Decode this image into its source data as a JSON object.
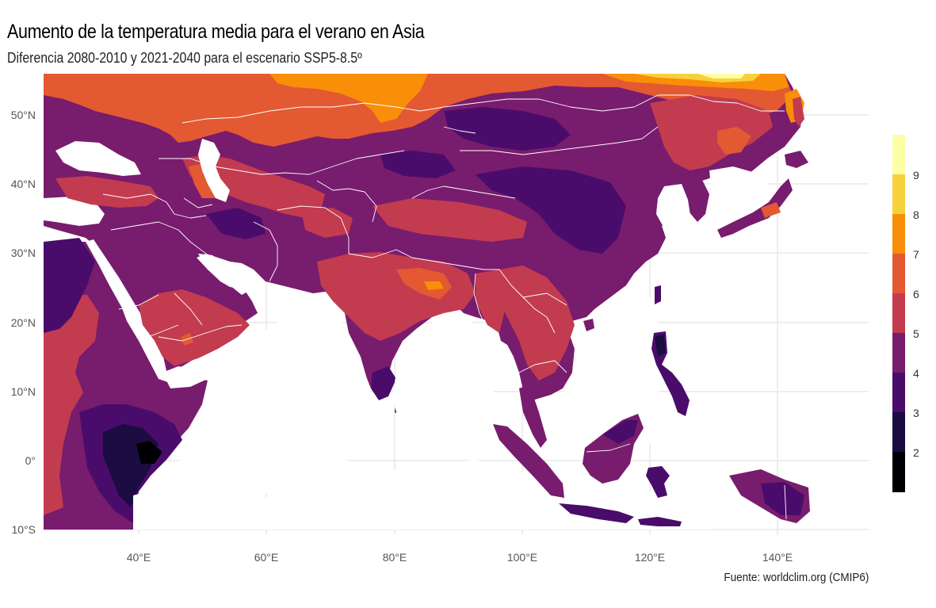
{
  "title": "Aumento de la temperatura media para el verano en Asia",
  "subtitle": "Diferencia 2080-2010 y 2021-2040 para el escenario SSP5-8.5º",
  "caption": "Fuente: worldclim.org (CMIP6)",
  "map": {
    "projection": "equirectangular",
    "lon_range": [
      25,
      155
    ],
    "lat_range": [
      -10,
      56
    ],
    "lat_ticks": [
      {
        "value": 50,
        "label": "50°N"
      },
      {
        "value": 40,
        "label": "40°N"
      },
      {
        "value": 30,
        "label": "30°N"
      },
      {
        "value": 20,
        "label": "20°N"
      },
      {
        "value": 10,
        "label": "10°N"
      },
      {
        "value": 0,
        "label": "0°"
      },
      {
        "value": -10,
        "label": "10°S"
      }
    ],
    "lon_ticks": [
      {
        "value": 40,
        "label": "40°E"
      },
      {
        "value": 60,
        "label": "60°E"
      },
      {
        "value": 80,
        "label": "80°E"
      },
      {
        "value": 100,
        "label": "100°E"
      },
      {
        "value": 120,
        "label": "120°E"
      },
      {
        "value": 140,
        "label": "140°E"
      }
    ],
    "grid": true
  },
  "legend": {
    "bins": [
      {
        "upper": 2,
        "color": "#000004"
      },
      {
        "upper": 3,
        "color": "#1b0c41"
      },
      {
        "upper": 4,
        "color": "#4a0c6b"
      },
      {
        "upper": 5,
        "color": "#781c6d"
      },
      {
        "upper": 6,
        "color": "#c33b4f"
      },
      {
        "upper": 7,
        "color": "#e35932"
      },
      {
        "upper": 8,
        "color": "#f98e09"
      },
      {
        "upper": 9,
        "color": "#f6d13c"
      },
      {
        "upper": 10,
        "color": "#fcffa4"
      }
    ],
    "labels": [
      "2",
      "3",
      "4",
      "5",
      "6",
      "7",
      "8",
      "9"
    ]
  },
  "colors": {
    "sea": "#ffffff",
    "grid": "#e8e8e8",
    "borders": "#ffffff"
  }
}
